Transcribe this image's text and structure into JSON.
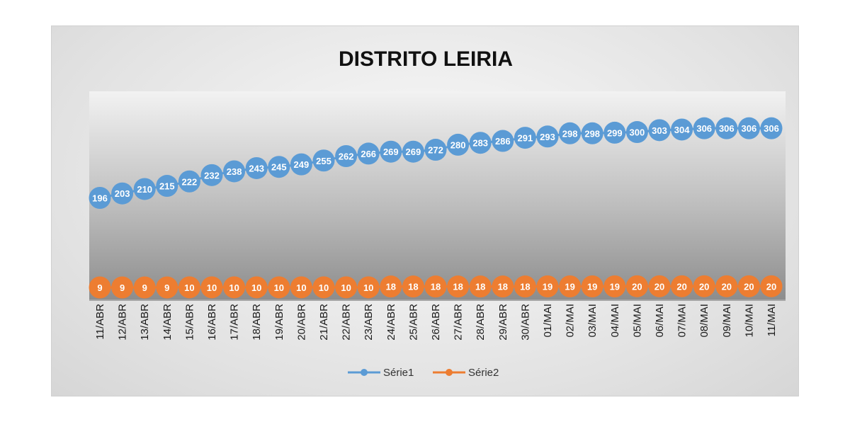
{
  "chart_data": {
    "type": "line",
    "title": "DISTRITO LEIRIA",
    "xlabel": "",
    "ylabel": "",
    "categories": [
      "11/ABR",
      "12/ABR",
      "13/ABR",
      "14/ABR",
      "15/ABR",
      "16/ABR",
      "17/ABR",
      "18/ABR",
      "19/ABR",
      "20/ABR",
      "21/ABR",
      "22/ABR",
      "23/ABR",
      "24/ABR",
      "25/ABR",
      "26/ABR",
      "27/ABR",
      "28/ABR",
      "29/ABR",
      "30/ABR",
      "01/MAI",
      "02/MAI",
      "03/MAI",
      "04/MAI",
      "05/MAI",
      "06/MAI",
      "07/MAI",
      "08/MAI",
      "09/MAI",
      "10/MAI",
      "11/MAI"
    ],
    "series": [
      {
        "name": "Série1",
        "color": "#5B9BD5",
        "values": [
          196,
          203,
          210,
          215,
          222,
          232,
          238,
          243,
          245,
          249,
          255,
          262,
          266,
          269,
          269,
          272,
          280,
          283,
          286,
          291,
          293,
          298,
          298,
          299,
          300,
          303,
          304,
          306,
          306,
          306,
          306
        ]
      },
      {
        "name": "Série2",
        "color": "#ED7D31",
        "values": [
          9,
          9,
          9,
          9,
          10,
          10,
          10,
          10,
          10,
          10,
          10,
          10,
          10,
          18,
          18,
          18,
          18,
          18,
          18,
          18,
          19,
          19,
          19,
          19,
          20,
          20,
          20,
          20,
          20,
          20,
          20
        ]
      }
    ],
    "data_labels": true,
    "grid": false,
    "legend": "bottom",
    "plot_area_color": "#a8a8a8"
  }
}
